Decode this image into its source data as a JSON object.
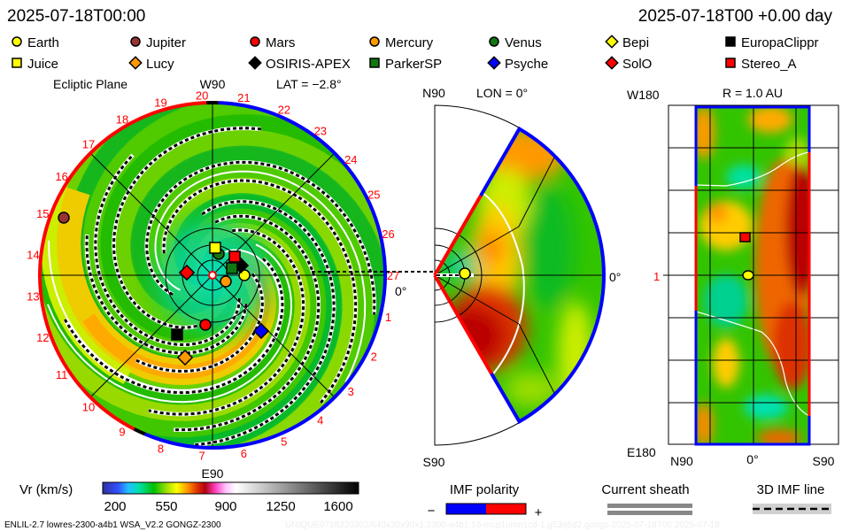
{
  "header": {
    "left_time": "2025-07-18T00:00",
    "right_time": "2025-07-18T00 +0.00 day"
  },
  "legend": [
    {
      "label": "Earth",
      "marker": "circle",
      "color": "#ffff00"
    },
    {
      "label": "Jupiter",
      "marker": "circle",
      "color": "#993333"
    },
    {
      "label": "Mars",
      "marker": "circle",
      "color": "#ff0000"
    },
    {
      "label": "Mercury",
      "marker": "circle",
      "color": "#ff9900"
    },
    {
      "label": "Venus",
      "marker": "circle",
      "color": "#117711"
    },
    {
      "label": "Bepi",
      "marker": "diamond",
      "color": "#ffff00"
    },
    {
      "label": "EuropaClippr",
      "marker": "square",
      "color": "#000000"
    },
    {
      "label": "Juice",
      "marker": "square",
      "color": "#ffff00"
    },
    {
      "label": "Lucy",
      "marker": "diamond",
      "color": "#ff9900"
    },
    {
      "label": "OSIRIS-APEX",
      "marker": "diamond",
      "color": "#000000"
    },
    {
      "label": "ParkerSP",
      "marker": "square",
      "color": "#117711"
    },
    {
      "label": "Psyche",
      "marker": "diamond",
      "color": "#0000ff"
    },
    {
      "label": "SolO",
      "marker": "diamond",
      "color": "#ff0000"
    },
    {
      "label": "Stereo_A",
      "marker": "square",
      "color": "#ff0000"
    }
  ],
  "ecliptic": {
    "title": "Ecliptic Plane",
    "top_label": "W90",
    "lat_label": "LAT = −2.8°",
    "bottom_label": "E90",
    "right_label": "0°",
    "carrington_labels": [
      "1",
      "2",
      "3",
      "4",
      "5",
      "6",
      "7",
      "8",
      "9",
      "10",
      "11",
      "12",
      "13",
      "14",
      "15",
      "16",
      "17",
      "18",
      "19",
      "20",
      "21",
      "22",
      "23",
      "24",
      "25",
      "26",
      "27"
    ]
  },
  "meridional": {
    "top_label": "N90",
    "lon_label": "LON = 0°",
    "bottom_label": "S90",
    "right_label": "0°"
  },
  "sphere": {
    "top_label": "W180",
    "r_label": "R = 1.0 AU",
    "bottom_label": "E180",
    "x_labels": [
      "N90",
      "0°",
      "S90"
    ],
    "center_label": "1"
  },
  "colorbar": {
    "label": "Vr (km/s)",
    "ticks": [
      "200",
      "550",
      "900",
      "1250",
      "1600"
    ],
    "range": [
      200,
      1600
    ]
  },
  "imf": {
    "label": "IMF polarity",
    "minus": "−",
    "plus": "+",
    "negative_color": "#0000ff",
    "positive_color": "#ff0000"
  },
  "current_sheath": {
    "label": "Current sheath"
  },
  "imf_line": {
    "label": "3D IMF line"
  },
  "footer": {
    "model": "ENLIL-2.7 lowres-2300-a4b1 WSA_V2.2 GONGZ-2300",
    "run_id": "UNIQUE0718220302/640x30x90x1.2300-a4b1.16-mcp1umn1cd-1.g53q5d2.gongz-2025-07-18T00   2025-07-18"
  }
}
